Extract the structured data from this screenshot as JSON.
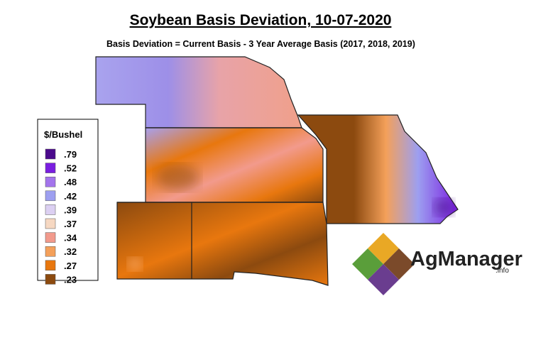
{
  "header": {
    "title": "Soybean Basis Deviation, 10-07-2020",
    "subtitle": "Basis Deviation = Current Basis - 3 Year Average Basis (2017, 2018, 2019)"
  },
  "legend": {
    "title": "$/Bushel",
    "items": [
      {
        "label": ".79",
        "color": "#4b0a8c"
      },
      {
        "label": ".52",
        "color": "#7a1ee0"
      },
      {
        "label": ".48",
        "color": "#a374ec"
      },
      {
        "label": ".42",
        "color": "#9d9ff0"
      },
      {
        "label": ".39",
        "color": "#dcd0f2"
      },
      {
        "label": ".37",
        "color": "#f6d8c2"
      },
      {
        "label": ".34",
        "color": "#f29a8c"
      },
      {
        "label": ".32",
        "color": "#f4a05a"
      },
      {
        "label": ".27",
        "color": "#e8770e"
      },
      {
        "label": ".23",
        "color": "#8c4a0f"
      }
    ]
  },
  "logo": {
    "name": "AgManager",
    "suffix": ".info"
  }
}
